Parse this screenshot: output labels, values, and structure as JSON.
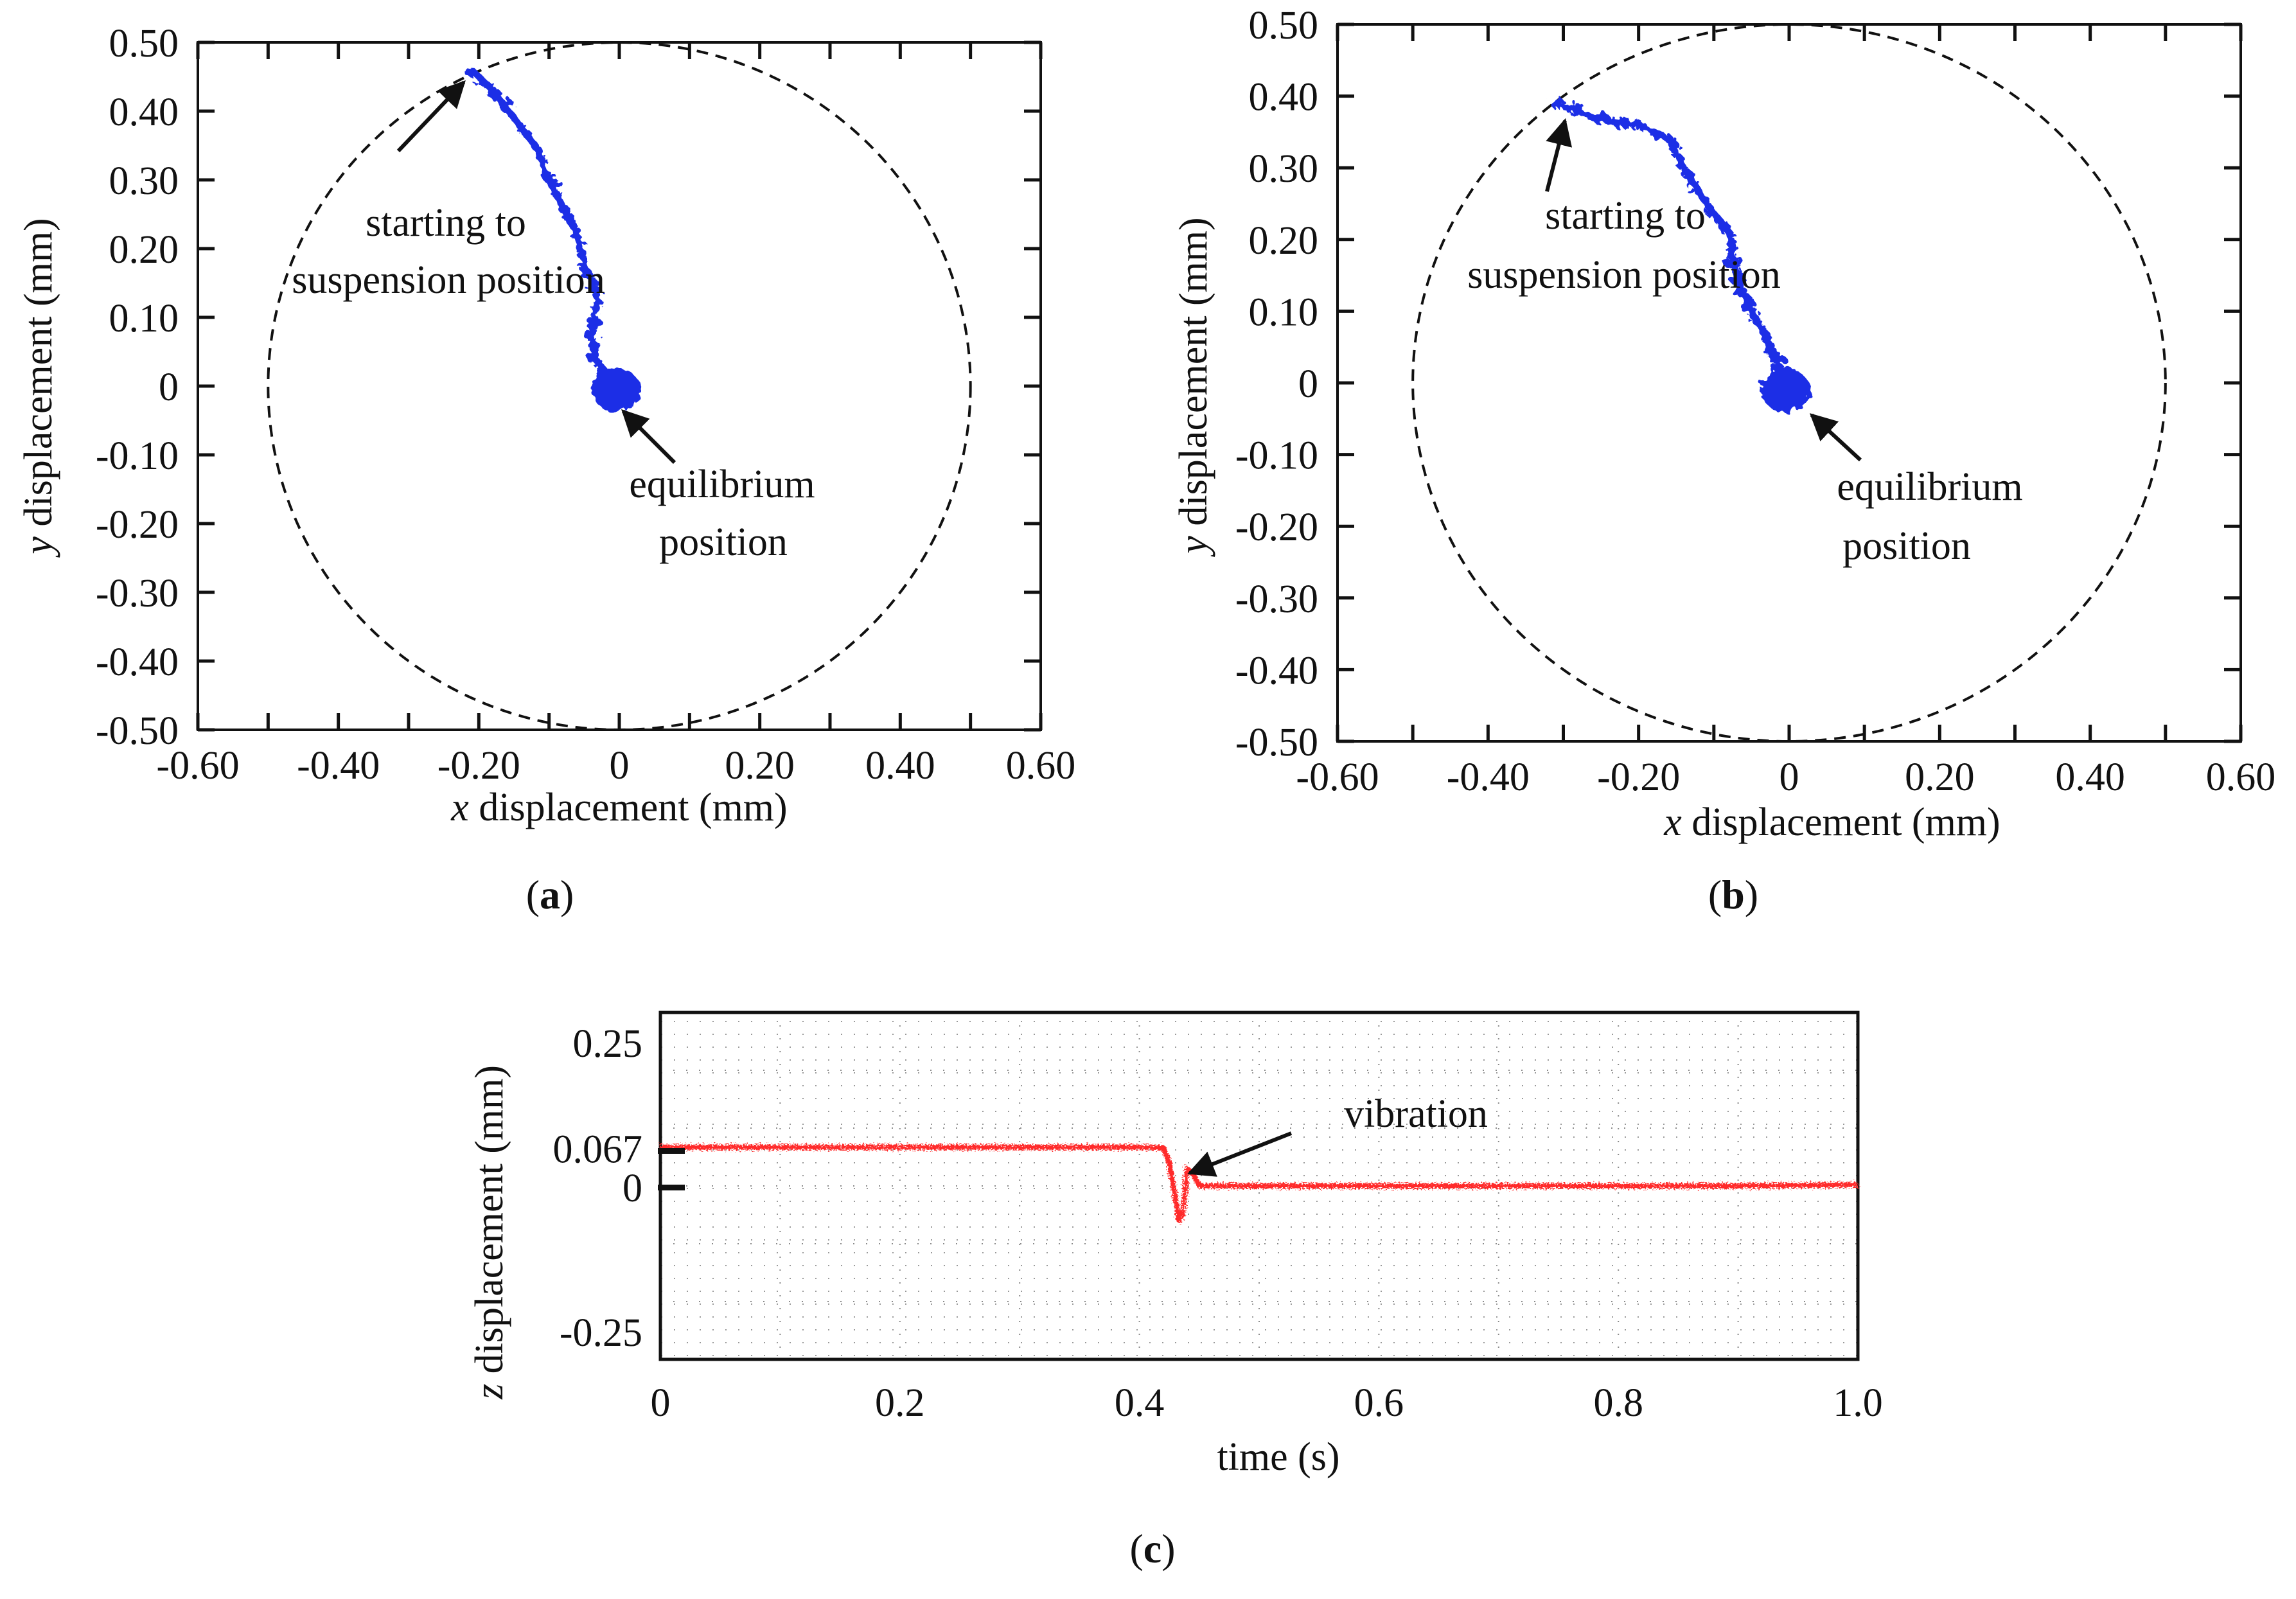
{
  "chart_data": [
    {
      "panel_label": "a",
      "type": "scatter",
      "xlabel_var": "x",
      "xlabel_rest": " displacement (mm)",
      "ylabel_var": "y",
      "ylabel_rest": " displacement (mm)",
      "xlim": [
        -0.6,
        0.6
      ],
      "ylim": [
        -0.5,
        0.5
      ],
      "x_ticks": [
        "-0.60",
        "-0.40",
        "-0.20",
        "0",
        "0.20",
        "0.40",
        "0.60"
      ],
      "y_ticks": [
        "0.50",
        "0.40",
        "0.30",
        "0.20",
        "0.10",
        "0",
        "-0.10",
        "-0.20",
        "-0.30",
        "-0.40",
        "-0.50"
      ],
      "boundary_circle": {
        "cx": 0,
        "cy": 0,
        "rx": 0.5,
        "ry": 0.5,
        "style": "dashed"
      },
      "series": [
        {
          "color": "#1f2ee6",
          "x": [
            -0.21,
            -0.18,
            -0.15,
            -0.12,
            -0.1,
            -0.08,
            -0.06,
            -0.05,
            -0.03,
            -0.04,
            -0.035,
            -0.01,
            -0.005
          ],
          "y": [
            0.46,
            0.43,
            0.39,
            0.35,
            0.3,
            0.26,
            0.22,
            0.18,
            0.13,
            0.07,
            0.04,
            0.01,
            0.0
          ]
        }
      ],
      "cluster": {
        "x": -0.005,
        "y": -0.005
      },
      "annotations": [
        {
          "lines": [
            "starting to",
            "suspension position"
          ],
          "points_to": [
            -0.21,
            0.46
          ]
        },
        {
          "lines": [
            "equilibrium",
            "position"
          ],
          "points_to": [
            0.0,
            -0.04
          ]
        }
      ],
      "colors": {
        "trace": "#1f2ee6"
      }
    },
    {
      "panel_label": "b",
      "type": "scatter",
      "xlabel_var": "x",
      "xlabel_rest": " displacement (mm)",
      "ylabel_var": "y",
      "ylabel_rest": " displacement (mm)",
      "xlim": [
        -0.6,
        0.6
      ],
      "ylim": [
        -0.5,
        0.5
      ],
      "x_ticks": [
        "-0.60",
        "-0.40",
        "-0.20",
        "0",
        "0.20",
        "0.40",
        "0.60"
      ],
      "y_ticks": [
        "0.50",
        "0.40",
        "0.30",
        "0.20",
        "0.10",
        "0",
        "-0.10",
        "-0.20",
        "-0.30",
        "-0.40",
        "-0.50"
      ],
      "boundary_circle": {
        "cx": 0,
        "cy": 0,
        "rx": 0.5,
        "ry": 0.5,
        "style": "dashed"
      },
      "series": [
        {
          "color": "#1f2ee6",
          "x": [
            -0.31,
            -0.26,
            -0.2,
            -0.16,
            -0.14,
            -0.11,
            -0.08,
            -0.07,
            -0.05,
            -0.03,
            -0.015,
            -0.005
          ],
          "y": [
            0.39,
            0.37,
            0.36,
            0.34,
            0.3,
            0.25,
            0.21,
            0.15,
            0.1,
            0.06,
            0.03,
            0.0
          ]
        }
      ],
      "cluster": {
        "x": -0.005,
        "y": -0.01
      },
      "annotations": [
        {
          "lines": [
            "starting to",
            "suspension position"
          ],
          "points_to": [
            -0.32,
            0.37
          ]
        },
        {
          "lines": [
            "equilibrium",
            "position"
          ],
          "points_to": [
            0.0,
            -0.04
          ]
        }
      ],
      "colors": {
        "trace": "#1f2ee6"
      }
    },
    {
      "panel_label": "c",
      "type": "line",
      "xlabel": "time (s)",
      "ylabel_var": "z",
      "ylabel_rest": " displacement (mm)",
      "xlim": [
        0,
        1.0
      ],
      "ylim": [
        -0.25,
        0.25
      ],
      "x_ticks": [
        "0",
        "0.2",
        "0.4",
        "0.6",
        "0.8",
        "1.0"
      ],
      "y_ticks": [
        {
          "label": "0.25",
          "value": 0.25
        },
        {
          "label": "0.067",
          "value": 0.067
        },
        {
          "label": "0",
          "value": 0.0
        },
        {
          "label": "-0.25",
          "value": -0.25
        }
      ],
      "series": [
        {
          "color": "#ff2a2a",
          "x": [
            0,
            0.1,
            0.2,
            0.3,
            0.4,
            0.42,
            0.425,
            0.43,
            0.433,
            0.436,
            0.44,
            0.445,
            0.45,
            0.5,
            0.6,
            0.7,
            0.8,
            0.9,
            1.0
          ],
          "y": [
            0.067,
            0.067,
            0.067,
            0.067,
            0.067,
            0.066,
            0.04,
            -0.02,
            -0.06,
            -0.05,
            0.03,
            0.02,
            0.0,
            0.0,
            0.0,
            0.0,
            0.0,
            0.0,
            0.002
          ]
        }
      ],
      "annotations": [
        {
          "lines": [
            "vibration"
          ],
          "points_to": [
            0.445,
            0.03
          ]
        }
      ],
      "colors": {
        "trace": "#ff2a2a",
        "grid": "#8a8a8a"
      }
    }
  ]
}
